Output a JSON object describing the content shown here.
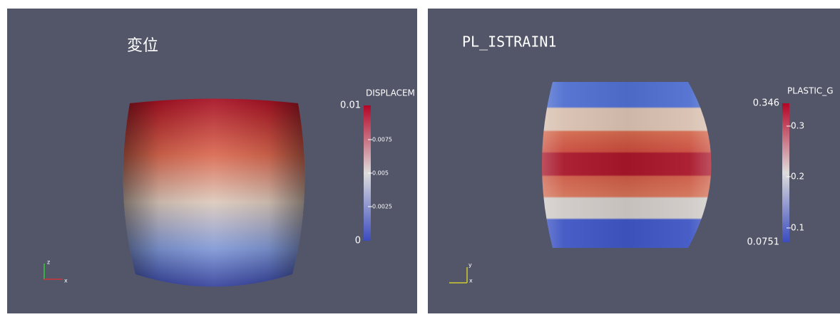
{
  "panels": [
    {
      "title": "変位",
      "colorbar": {
        "label": "DISPLACEM",
        "max": "0.01",
        "min": "0",
        "ticks": [
          "0.0075",
          "0.005",
          "0.0025"
        ]
      },
      "axes": [
        "z",
        "x"
      ]
    },
    {
      "title": "PL_ISTRAIN1",
      "colorbar": {
        "label": "PLASTIC_G",
        "max": "0.346",
        "min": "0.0751",
        "ticks": [
          "0.3",
          "0.2",
          "0.1"
        ]
      },
      "axes": [
        "y",
        "x"
      ]
    }
  ]
}
